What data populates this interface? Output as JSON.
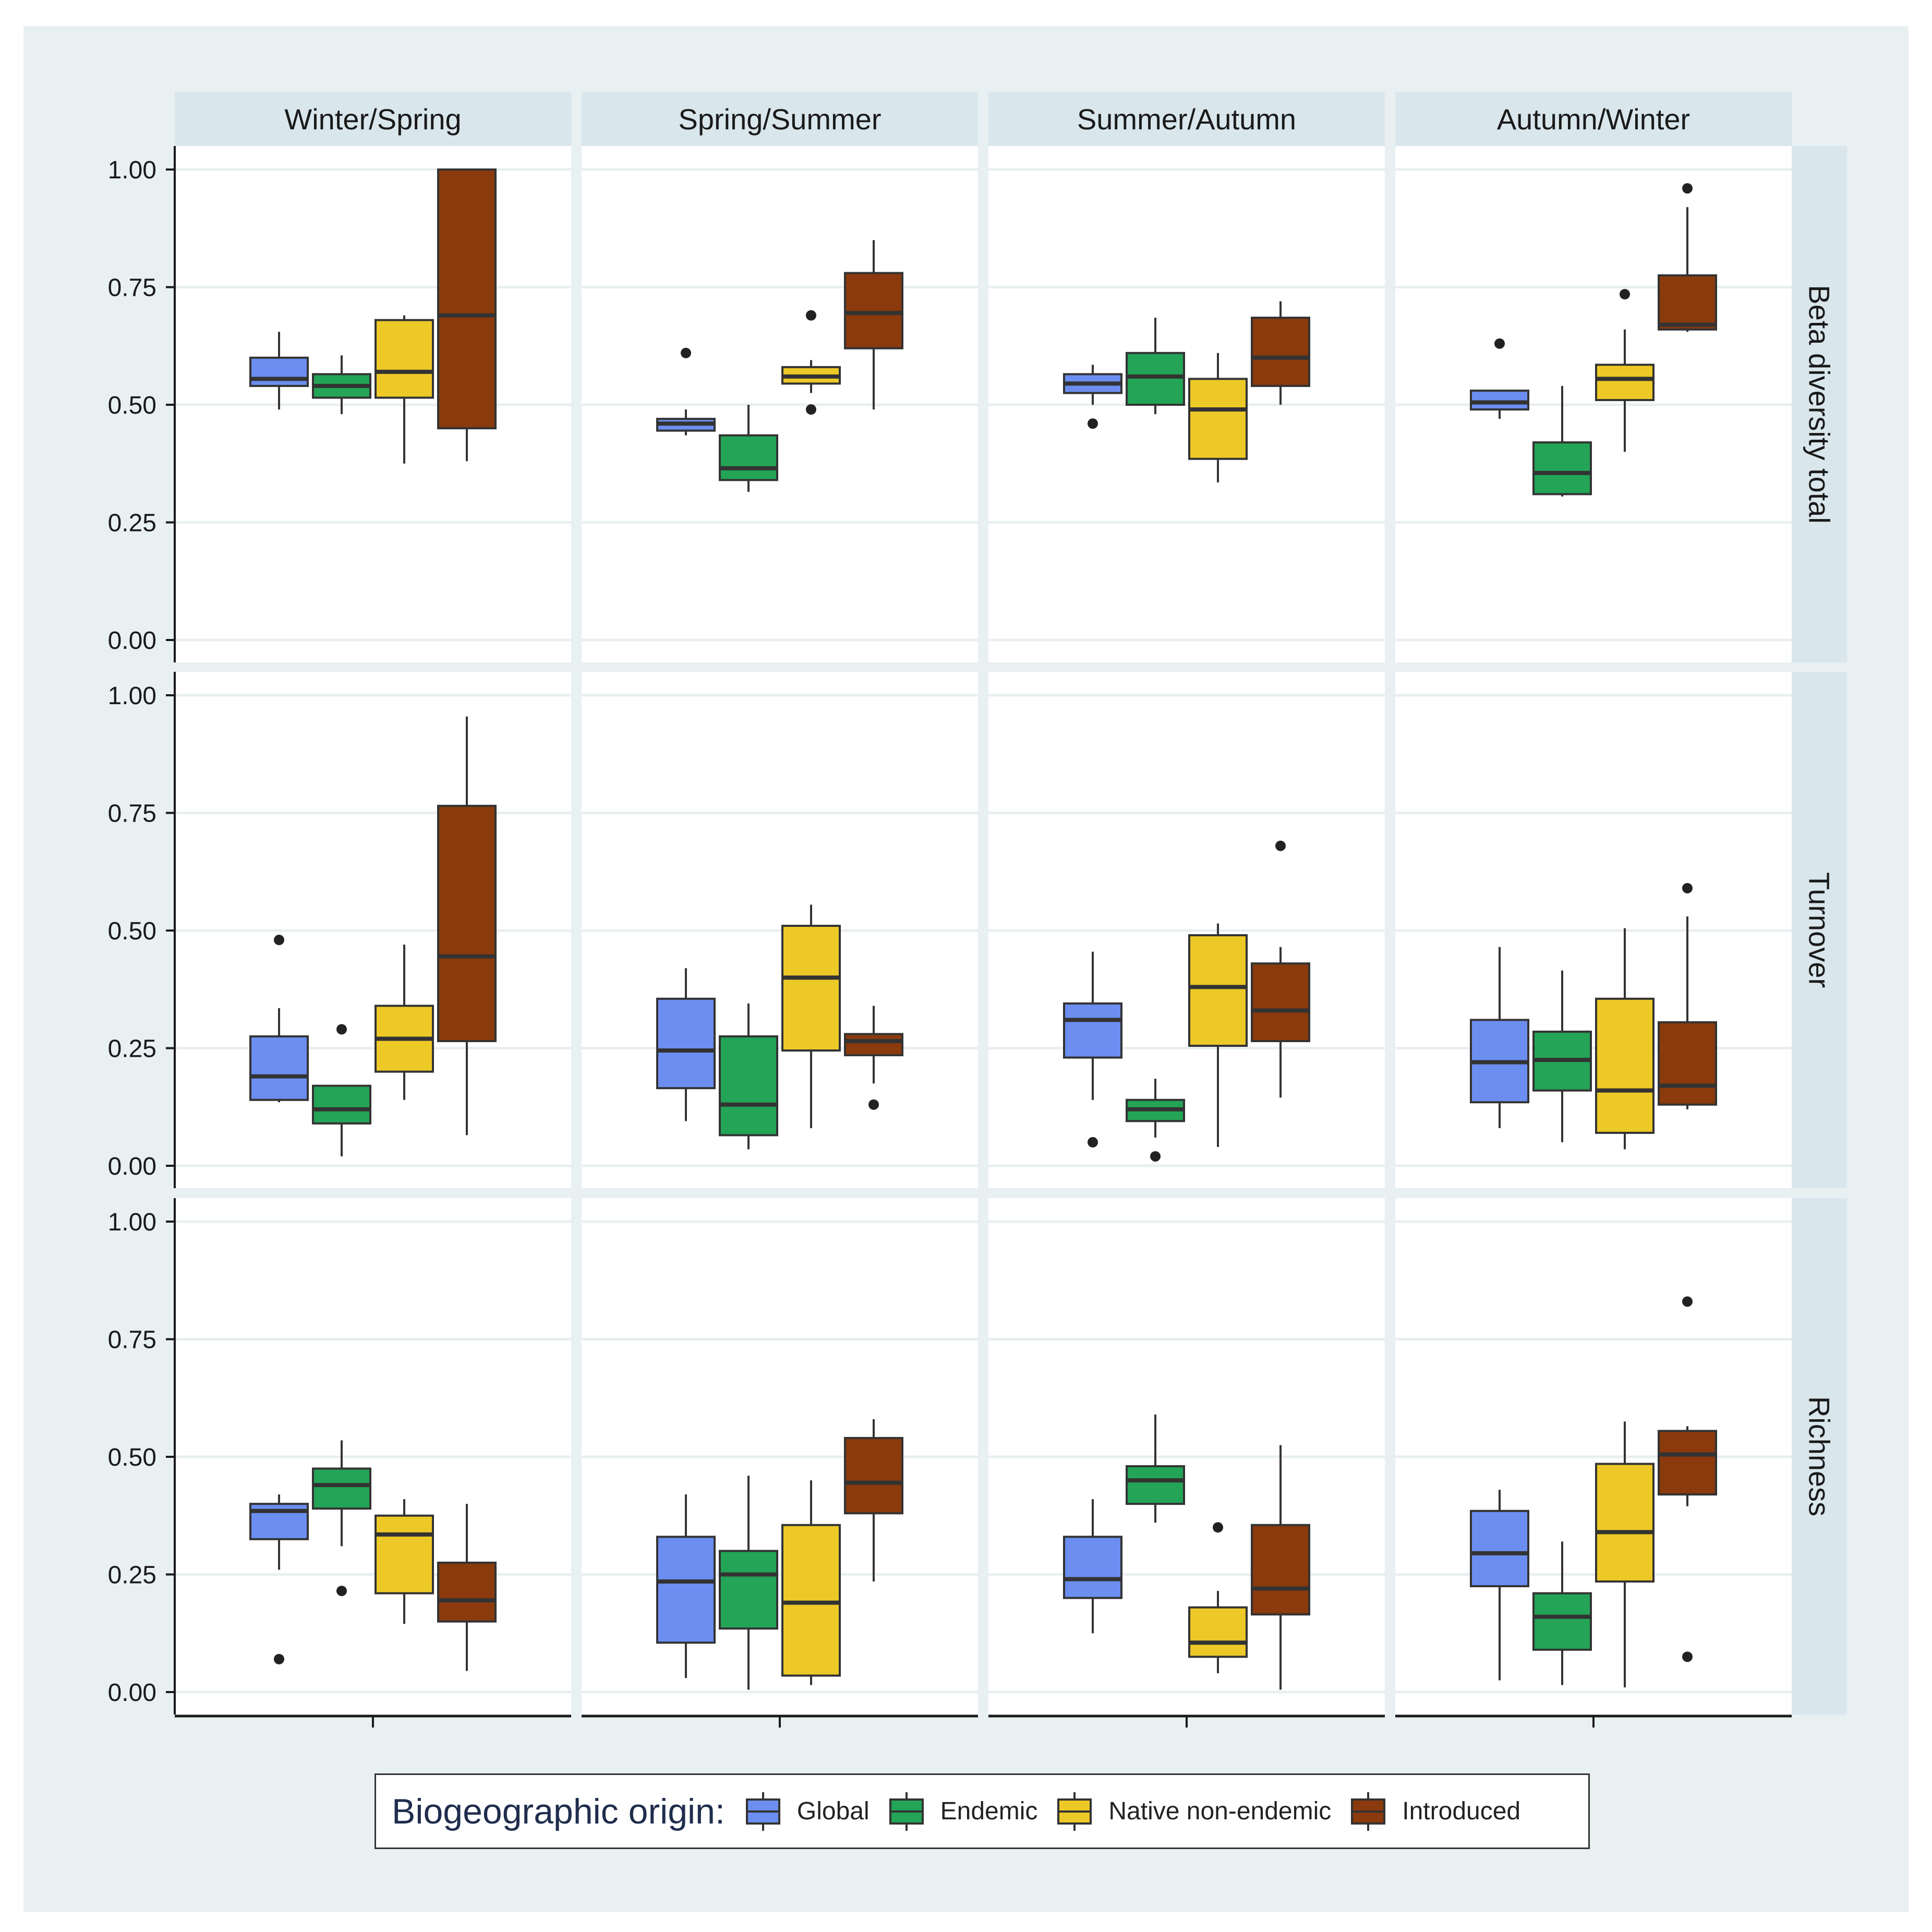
{
  "colors": {
    "background": "#e8f0f2",
    "panel": "#ffffff",
    "grid": "#e9eff1",
    "strip": "#d9e6eb",
    "Global": "#6b8ef0",
    "Endemic": "#23a456",
    "Native non-endemic": "#edc928",
    "Introduced": "#8a3a0c",
    "outline": "#333333"
  },
  "chart_data": {
    "type": "boxplot",
    "facet_columns": [
      "Winter/Spring",
      "Spring/Summer",
      "Summer/Autumn",
      "Autumn/Winter"
    ],
    "facet_rows": [
      "Beta diversity total",
      "Turnover",
      "Richness"
    ],
    "y_ticks": [
      "0.00",
      "0.25",
      "0.50",
      "0.75",
      "1.00"
    ],
    "ylim": [
      0,
      1
    ],
    "grid": true,
    "legend": {
      "title": "Biogeographic origin:",
      "placement": "bottom",
      "entries": [
        "Global",
        "Endemic",
        "Native non-endemic",
        "Introduced"
      ]
    },
    "groups": [
      "Global",
      "Endemic",
      "Native non-endemic",
      "Introduced"
    ],
    "panels": [
      {
        "row": "Beta diversity total",
        "col": "Winter/Spring",
        "boxes": [
          {
            "group": "Global",
            "whisker_low": 0.49,
            "q1": 0.54,
            "median": 0.555,
            "q3": 0.6,
            "whisker_high": 0.655,
            "outliers": []
          },
          {
            "group": "Endemic",
            "whisker_low": 0.48,
            "q1": 0.515,
            "median": 0.54,
            "q3": 0.565,
            "whisker_high": 0.605,
            "outliers": []
          },
          {
            "group": "Native non-endemic",
            "whisker_low": 0.375,
            "q1": 0.515,
            "median": 0.57,
            "q3": 0.68,
            "whisker_high": 0.69,
            "outliers": []
          },
          {
            "group": "Introduced",
            "whisker_low": 0.38,
            "q1": 0.45,
            "median": 0.69,
            "q3": 1.0,
            "whisker_high": 1.0,
            "outliers": []
          }
        ]
      },
      {
        "row": "Beta diversity total",
        "col": "Spring/Summer",
        "boxes": [
          {
            "group": "Global",
            "whisker_low": 0.435,
            "q1": 0.445,
            "median": 0.46,
            "q3": 0.47,
            "whisker_high": 0.49,
            "outliers": [
              0.61
            ]
          },
          {
            "group": "Endemic",
            "whisker_low": 0.315,
            "q1": 0.34,
            "median": 0.365,
            "q3": 0.435,
            "whisker_high": 0.5,
            "outliers": []
          },
          {
            "group": "Native non-endemic",
            "whisker_low": 0.525,
            "q1": 0.545,
            "median": 0.56,
            "q3": 0.58,
            "whisker_high": 0.595,
            "outliers": [
              0.69,
              0.49
            ]
          },
          {
            "group": "Introduced",
            "whisker_low": 0.49,
            "q1": 0.62,
            "median": 0.695,
            "q3": 0.78,
            "whisker_high": 0.85,
            "outliers": []
          }
        ]
      },
      {
        "row": "Beta diversity total",
        "col": "Summer/Autumn",
        "boxes": [
          {
            "group": "Global",
            "whisker_low": 0.5,
            "q1": 0.525,
            "median": 0.545,
            "q3": 0.565,
            "whisker_high": 0.585,
            "outliers": [
              0.46
            ]
          },
          {
            "group": "Endemic",
            "whisker_low": 0.48,
            "q1": 0.5,
            "median": 0.56,
            "q3": 0.61,
            "whisker_high": 0.685,
            "outliers": []
          },
          {
            "group": "Native non-endemic",
            "whisker_low": 0.335,
            "q1": 0.385,
            "median": 0.49,
            "q3": 0.555,
            "whisker_high": 0.61,
            "outliers": []
          },
          {
            "group": "Introduced",
            "whisker_low": 0.5,
            "q1": 0.54,
            "median": 0.6,
            "q3": 0.685,
            "whisker_high": 0.72,
            "outliers": []
          }
        ]
      },
      {
        "row": "Beta diversity total",
        "col": "Autumn/Winter",
        "boxes": [
          {
            "group": "Global",
            "whisker_low": 0.47,
            "q1": 0.49,
            "median": 0.505,
            "q3": 0.53,
            "whisker_high": 0.53,
            "outliers": [
              0.63
            ]
          },
          {
            "group": "Endemic",
            "whisker_low": 0.305,
            "q1": 0.31,
            "median": 0.355,
            "q3": 0.42,
            "whisker_high": 0.54,
            "outliers": []
          },
          {
            "group": "Native non-endemic",
            "whisker_low": 0.4,
            "q1": 0.51,
            "median": 0.555,
            "q3": 0.585,
            "whisker_high": 0.66,
            "outliers": [
              0.735
            ]
          },
          {
            "group": "Introduced",
            "whisker_low": 0.655,
            "q1": 0.66,
            "median": 0.67,
            "q3": 0.775,
            "whisker_high": 0.92,
            "outliers": [
              0.96
            ]
          }
        ]
      },
      {
        "row": "Turnover",
        "col": "Winter/Spring",
        "boxes": [
          {
            "group": "Global",
            "whisker_low": 0.135,
            "q1": 0.14,
            "median": 0.19,
            "q3": 0.275,
            "whisker_high": 0.335,
            "outliers": [
              0.48
            ]
          },
          {
            "group": "Endemic",
            "whisker_low": 0.02,
            "q1": 0.09,
            "median": 0.12,
            "q3": 0.17,
            "whisker_high": 0.17,
            "outliers": [
              0.29
            ]
          },
          {
            "group": "Native non-endemic",
            "whisker_low": 0.14,
            "q1": 0.2,
            "median": 0.27,
            "q3": 0.34,
            "whisker_high": 0.47,
            "outliers": []
          },
          {
            "group": "Introduced",
            "whisker_low": 0.065,
            "q1": 0.265,
            "median": 0.445,
            "q3": 0.765,
            "whisker_high": 0.955,
            "outliers": []
          }
        ]
      },
      {
        "row": "Turnover",
        "col": "Spring/Summer",
        "boxes": [
          {
            "group": "Global",
            "whisker_low": 0.095,
            "q1": 0.165,
            "median": 0.245,
            "q3": 0.355,
            "whisker_high": 0.42,
            "outliers": []
          },
          {
            "group": "Endemic",
            "whisker_low": 0.035,
            "q1": 0.065,
            "median": 0.13,
            "q3": 0.275,
            "whisker_high": 0.345,
            "outliers": []
          },
          {
            "group": "Native non-endemic",
            "whisker_low": 0.08,
            "q1": 0.245,
            "median": 0.4,
            "q3": 0.51,
            "whisker_high": 0.555,
            "outliers": []
          },
          {
            "group": "Introduced",
            "whisker_low": 0.175,
            "q1": 0.235,
            "median": 0.265,
            "q3": 0.28,
            "whisker_high": 0.34,
            "outliers": [
              0.13
            ]
          }
        ]
      },
      {
        "row": "Turnover",
        "col": "Summer/Autumn",
        "boxes": [
          {
            "group": "Global",
            "whisker_low": 0.14,
            "q1": 0.23,
            "median": 0.31,
            "q3": 0.345,
            "whisker_high": 0.455,
            "outliers": [
              0.05
            ]
          },
          {
            "group": "Endemic",
            "whisker_low": 0.06,
            "q1": 0.095,
            "median": 0.12,
            "q3": 0.14,
            "whisker_high": 0.185,
            "outliers": [
              0.02
            ]
          },
          {
            "group": "Native non-endemic",
            "whisker_low": 0.04,
            "q1": 0.255,
            "median": 0.38,
            "q3": 0.49,
            "whisker_high": 0.515,
            "outliers": []
          },
          {
            "group": "Introduced",
            "whisker_low": 0.145,
            "q1": 0.265,
            "median": 0.33,
            "q3": 0.43,
            "whisker_high": 0.465,
            "outliers": [
              0.68
            ]
          }
        ]
      },
      {
        "row": "Turnover",
        "col": "Autumn/Winter",
        "boxes": [
          {
            "group": "Global",
            "whisker_low": 0.08,
            "q1": 0.135,
            "median": 0.22,
            "q3": 0.31,
            "whisker_high": 0.465,
            "outliers": []
          },
          {
            "group": "Endemic",
            "whisker_low": 0.05,
            "q1": 0.16,
            "median": 0.225,
            "q3": 0.285,
            "whisker_high": 0.415,
            "outliers": []
          },
          {
            "group": "Native non-endemic",
            "whisker_low": 0.035,
            "q1": 0.07,
            "median": 0.16,
            "q3": 0.355,
            "whisker_high": 0.505,
            "outliers": []
          },
          {
            "group": "Introduced",
            "whisker_low": 0.12,
            "q1": 0.13,
            "median": 0.17,
            "q3": 0.305,
            "whisker_high": 0.53,
            "outliers": [
              0.59
            ]
          }
        ]
      },
      {
        "row": "Richness",
        "col": "Winter/Spring",
        "boxes": [
          {
            "group": "Global",
            "whisker_low": 0.26,
            "q1": 0.325,
            "median": 0.385,
            "q3": 0.4,
            "whisker_high": 0.42,
            "outliers": [
              0.07
            ]
          },
          {
            "group": "Endemic",
            "whisker_low": 0.31,
            "q1": 0.39,
            "median": 0.44,
            "q3": 0.475,
            "whisker_high": 0.535,
            "outliers": [
              0.215
            ]
          },
          {
            "group": "Native non-endemic",
            "whisker_low": 0.145,
            "q1": 0.21,
            "median": 0.335,
            "q3": 0.375,
            "whisker_high": 0.41,
            "outliers": []
          },
          {
            "group": "Introduced",
            "whisker_low": 0.045,
            "q1": 0.15,
            "median": 0.195,
            "q3": 0.275,
            "whisker_high": 0.4,
            "outliers": []
          }
        ]
      },
      {
        "row": "Richness",
        "col": "Spring/Summer",
        "boxes": [
          {
            "group": "Global",
            "whisker_low": 0.03,
            "q1": 0.105,
            "median": 0.235,
            "q3": 0.33,
            "whisker_high": 0.42,
            "outliers": []
          },
          {
            "group": "Endemic",
            "whisker_low": 0.005,
            "q1": 0.135,
            "median": 0.25,
            "q3": 0.3,
            "whisker_high": 0.46,
            "outliers": []
          },
          {
            "group": "Native non-endemic",
            "whisker_low": 0.015,
            "q1": 0.035,
            "median": 0.19,
            "q3": 0.355,
            "whisker_high": 0.45,
            "outliers": []
          },
          {
            "group": "Introduced",
            "whisker_low": 0.235,
            "q1": 0.38,
            "median": 0.445,
            "q3": 0.54,
            "whisker_high": 0.58,
            "outliers": []
          }
        ]
      },
      {
        "row": "Richness",
        "col": "Summer/Autumn",
        "boxes": [
          {
            "group": "Global",
            "whisker_low": 0.125,
            "q1": 0.2,
            "median": 0.24,
            "q3": 0.33,
            "whisker_high": 0.41,
            "outliers": []
          },
          {
            "group": "Endemic",
            "whisker_low": 0.36,
            "q1": 0.4,
            "median": 0.45,
            "q3": 0.48,
            "whisker_high": 0.59,
            "outliers": []
          },
          {
            "group": "Native non-endemic",
            "whisker_low": 0.04,
            "q1": 0.075,
            "median": 0.105,
            "q3": 0.18,
            "whisker_high": 0.215,
            "outliers": [
              0.35
            ]
          },
          {
            "group": "Introduced",
            "whisker_low": 0.005,
            "q1": 0.165,
            "median": 0.22,
            "q3": 0.355,
            "whisker_high": 0.525,
            "outliers": []
          }
        ]
      },
      {
        "row": "Richness",
        "col": "Autumn/Winter",
        "boxes": [
          {
            "group": "Global",
            "whisker_low": 0.025,
            "q1": 0.225,
            "median": 0.295,
            "q3": 0.385,
            "whisker_high": 0.43,
            "outliers": []
          },
          {
            "group": "Endemic",
            "whisker_low": 0.015,
            "q1": 0.09,
            "median": 0.16,
            "q3": 0.21,
            "whisker_high": 0.32,
            "outliers": []
          },
          {
            "group": "Native non-endemic",
            "whisker_low": 0.01,
            "q1": 0.235,
            "median": 0.34,
            "q3": 0.485,
            "whisker_high": 0.575,
            "outliers": []
          },
          {
            "group": "Introduced",
            "whisker_low": 0.395,
            "q1": 0.42,
            "median": 0.505,
            "q3": 0.555,
            "whisker_high": 0.565,
            "outliers": [
              0.83,
              0.075
            ]
          }
        ]
      }
    ]
  }
}
